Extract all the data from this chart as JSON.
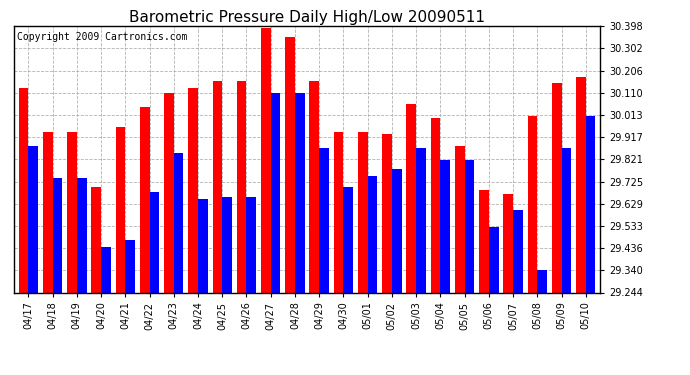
{
  "title": "Barometric Pressure Daily High/Low 20090511",
  "copyright": "Copyright 2009 Cartronics.com",
  "dates": [
    "04/17",
    "04/18",
    "04/19",
    "04/20",
    "04/21",
    "04/22",
    "04/23",
    "04/24",
    "04/25",
    "04/26",
    "04/27",
    "04/28",
    "04/29",
    "04/30",
    "05/01",
    "05/02",
    "05/03",
    "05/04",
    "05/05",
    "05/06",
    "05/07",
    "05/08",
    "05/09",
    "05/10"
  ],
  "highs": [
    30.13,
    29.94,
    29.94,
    29.7,
    29.96,
    30.05,
    30.11,
    30.13,
    30.16,
    30.16,
    30.39,
    30.35,
    30.16,
    29.94,
    29.94,
    29.93,
    30.06,
    30.0,
    29.88,
    29.69,
    29.67,
    30.01,
    30.15,
    30.18
  ],
  "lows": [
    29.88,
    29.74,
    29.74,
    29.44,
    29.47,
    29.68,
    29.85,
    29.65,
    29.66,
    29.66,
    30.11,
    30.11,
    29.87,
    29.7,
    29.75,
    29.78,
    29.87,
    29.82,
    29.82,
    29.53,
    29.6,
    29.34,
    29.87,
    30.01
  ],
  "ymin": 29.244,
  "ymax": 30.398,
  "yticks": [
    29.244,
    29.34,
    29.436,
    29.533,
    29.629,
    29.725,
    29.821,
    29.917,
    30.013,
    30.11,
    30.206,
    30.302,
    30.398
  ],
  "high_color": "#ff0000",
  "low_color": "#0000ff",
  "background_color": "#ffffff",
  "grid_color": "#aaaaaa",
  "title_fontsize": 11,
  "copyright_fontsize": 7
}
